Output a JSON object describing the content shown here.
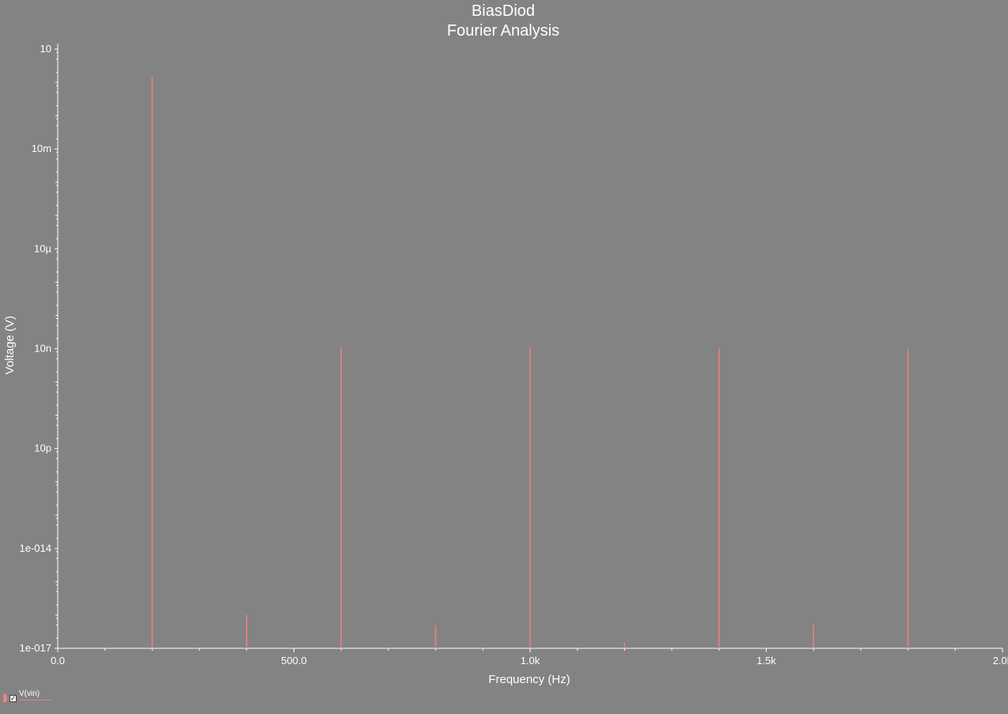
{
  "chart_data": {
    "type": "bar",
    "title": "BiasDiod",
    "subtitle": "Fourier Analysis",
    "xlabel": "Frequency (Hz)",
    "ylabel": "Voltage (V)",
    "y_scale": "log",
    "xlim": [
      0,
      2000
    ],
    "ylim": [
      1e-17,
      10
    ],
    "x_ticks": [
      {
        "value": 0,
        "label": "0.0"
      },
      {
        "value": 500,
        "label": "500.0"
      },
      {
        "value": 1000,
        "label": "1.0k"
      },
      {
        "value": 1500,
        "label": "1.5k"
      },
      {
        "value": 2000,
        "label": "2.0k"
      }
    ],
    "y_ticks": [
      {
        "value": 10,
        "label": "10"
      },
      {
        "value": 0.01,
        "label": "10m"
      },
      {
        "value": 1e-05,
        "label": "10µ"
      },
      {
        "value": 1e-08,
        "label": "10n"
      },
      {
        "value": 1e-11,
        "label": "10p"
      },
      {
        "value": 1e-14,
        "label": "1e-014"
      },
      {
        "value": 1e-17,
        "label": "1e-017"
      }
    ],
    "grid": false,
    "legend_position": "bottom-left",
    "series": [
      {
        "name": "V(vin)",
        "color": "#f08080",
        "x": [
          200,
          400,
          600,
          800,
          1000,
          1200,
          1400,
          1600,
          1800
        ],
        "values": [
          1.5,
          1e-16,
          1.1e-08,
          5e-17,
          1.1e-08,
          1.5e-17,
          1e-08,
          5e-17,
          1e-08
        ]
      }
    ]
  },
  "legend": {
    "label": "V(vin)",
    "checked": "✓"
  }
}
